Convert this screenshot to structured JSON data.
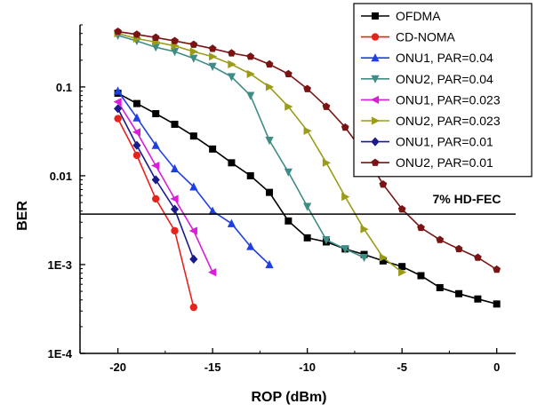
{
  "chart_data": {
    "type": "line",
    "xlabel": "ROP (dBm)",
    "ylabel": "BER",
    "xlim": [
      -22,
      1
    ],
    "ylim": [
      0.0001,
      0.5
    ],
    "yscale": "log",
    "x_ticks": [
      -20,
      -15,
      -10,
      -5,
      0
    ],
    "x_tick_labels": [
      "-20",
      "-15",
      "-10",
      "-5",
      "0"
    ],
    "y_ticks": [
      0.0001,
      0.001,
      0.01,
      0.1
    ],
    "y_tick_labels": [
      "1E-4",
      "1E-3",
      "0.01",
      "0.1"
    ],
    "grid": false,
    "legend_position": "top-right",
    "reference_line": {
      "y": 0.0037,
      "label": "7% HD-FEC"
    },
    "series": [
      {
        "name": "OFDMA",
        "color": "#000000",
        "marker": "square",
        "x": [
          -20,
          -19,
          -18,
          -17,
          -16,
          -15,
          -14,
          -13,
          -12,
          -11,
          -10,
          -9,
          -8,
          -7,
          -6,
          -5,
          -4,
          -3,
          -2,
          -1,
          0
        ],
        "y": [
          0.085,
          0.065,
          0.05,
          0.038,
          0.028,
          0.02,
          0.014,
          0.01,
          0.0065,
          0.0031,
          0.002,
          0.0018,
          0.0015,
          0.0013,
          0.0011,
          0.00095,
          0.00075,
          0.00055,
          0.00047,
          0.00041,
          0.00036
        ]
      },
      {
        "name": "CD-NOMA",
        "color": "#e8231e",
        "marker": "circle",
        "x": [
          -20,
          -19,
          -18,
          -17,
          -16
        ],
        "y": [
          0.044,
          0.017,
          0.0055,
          0.0024,
          0.00033
        ]
      },
      {
        "name": "ONU1, PAR=0.04",
        "color": "#1f3fe0",
        "marker": "triangle-up",
        "x": [
          -20,
          -19,
          -18,
          -17,
          -16,
          -15,
          -14,
          -13,
          -12
        ],
        "y": [
          0.09,
          0.045,
          0.022,
          0.012,
          0.0075,
          0.004,
          0.0029,
          0.0016,
          0.001
        ]
      },
      {
        "name": "ONU2, PAR=0.04",
        "color": "#3f8c87",
        "marker": "triangle-down",
        "x": [
          -20,
          -19,
          -18,
          -17,
          -16,
          -15,
          -14,
          -13,
          -12,
          -11,
          -10,
          -9,
          -8,
          -7
        ],
        "y": [
          0.38,
          0.33,
          0.28,
          0.25,
          0.21,
          0.17,
          0.13,
          0.08,
          0.025,
          0.011,
          0.0045,
          0.0019,
          0.0015,
          0.0012
        ]
      },
      {
        "name": "ONU1, PAR=0.023",
        "color": "#d81ed8",
        "marker": "triangle-left",
        "x": [
          -20,
          -19,
          -18,
          -17,
          -16,
          -15
        ],
        "y": [
          0.068,
          0.031,
          0.013,
          0.0055,
          0.0024,
          0.00082
        ]
      },
      {
        "name": "ONU2, PAR=0.023",
        "color": "#9b9b1a",
        "marker": "triangle-right",
        "x": [
          -20,
          -19,
          -18,
          -17,
          -16,
          -15,
          -14,
          -13,
          -12,
          -11,
          -10,
          -9,
          -8,
          -7,
          -6,
          -5
        ],
        "y": [
          0.4,
          0.35,
          0.32,
          0.29,
          0.25,
          0.22,
          0.18,
          0.14,
          0.1,
          0.06,
          0.032,
          0.014,
          0.0058,
          0.0025,
          0.0012,
          0.00082
        ]
      },
      {
        "name": "ONU1, PAR=0.01",
        "color": "#1a1a8a",
        "marker": "diamond",
        "x": [
          -20,
          -19,
          -18,
          -17,
          -16
        ],
        "y": [
          0.057,
          0.022,
          0.009,
          0.0042,
          0.00115
        ]
      },
      {
        "name": "ONU2, PAR=0.01",
        "color": "#7a1414",
        "marker": "pentagon",
        "x": [
          -20,
          -19,
          -18,
          -17,
          -16,
          -15,
          -14,
          -13,
          -12,
          -11,
          -10,
          -9,
          -8,
          -7,
          -6,
          -5,
          -4,
          -3,
          -2,
          -1,
          0
        ],
        "y": [
          0.42,
          0.39,
          0.36,
          0.33,
          0.3,
          0.27,
          0.24,
          0.22,
          0.18,
          0.14,
          0.095,
          0.06,
          0.035,
          0.018,
          0.008,
          0.0042,
          0.0026,
          0.0019,
          0.0015,
          0.0012,
          0.00088
        ]
      }
    ]
  }
}
